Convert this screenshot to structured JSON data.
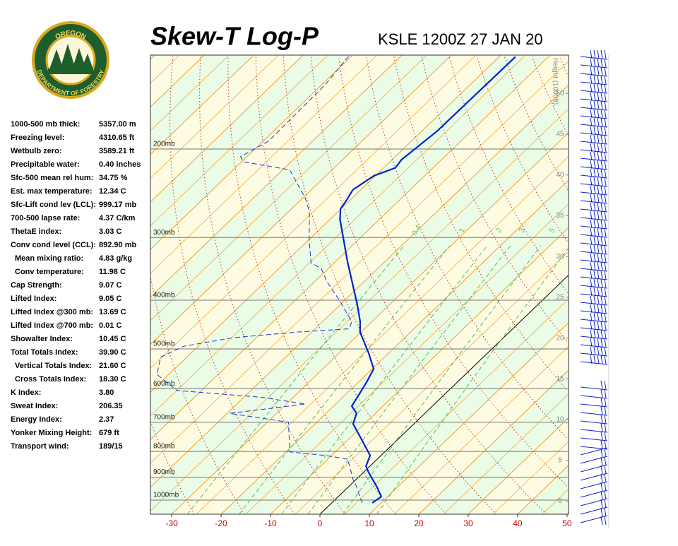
{
  "logo": {
    "top": "OREGON",
    "bottom": "DEPARTMENT OF FORESTRY"
  },
  "indices": [
    {
      "label": "1000-500 mb thick:",
      "value": "5357.00 m"
    },
    {
      "label": "Freezing level:",
      "value": "4310.65 ft"
    },
    {
      "label": "Wetbulb zero:",
      "value": "3589.21 ft"
    },
    {
      "label": "Precipitable water:",
      "value": "0.40 inches"
    },
    {
      "label": "Sfc-500 mean rel hum:",
      "value": "34.75 %"
    },
    {
      "label": "Est. max temperature:",
      "value": "12.34 C"
    },
    {
      "label": "Sfc-Lift cond lev (LCL):",
      "value": "999.17 mb"
    },
    {
      "label": "700-500 lapse rate:",
      "value": "4.37 C/km"
    },
    {
      "label": "ThetaE index:",
      "value": "3.03 C"
    },
    {
      "label": "Conv cond level (CCL):",
      "value": "892.90 mb"
    },
    {
      "label": "Mean mixing ratio:",
      "value": "4.83 g/kg"
    },
    {
      "label": "Conv temperature:",
      "value": "11.98 C"
    },
    {
      "label": "Cap Strength:",
      "value": "9.07 C"
    },
    {
      "label": "Lifted Index:",
      "value": "9.05 C"
    },
    {
      "label": "Lifted Index @300 mb:",
      "value": "13.69 C"
    },
    {
      "label": "Lifted Index @700 mb:",
      "value": "0.01 C"
    },
    {
      "label": "Showalter Index:",
      "value": "10.45 C"
    },
    {
      "label": "Total Totals Index:",
      "value": "39.90 C"
    },
    {
      "label": "Vertical Totals Index:",
      "value": "21.60 C"
    },
    {
      "label": "Cross Totals Index:",
      "value": "18.30 C"
    },
    {
      "label": "K Index:",
      "value": "3.80"
    },
    {
      "label": "Sweat Index:",
      "value": "206.35"
    },
    {
      "label": "Energy Index:",
      "value": "2.37"
    },
    {
      "label": "Yonker Mixing Height:",
      "value": "679 ft"
    },
    {
      "label": "Transport wind:",
      "value": "189/15"
    }
  ],
  "chart_data": {
    "type": "skew-t",
    "title": "Skew-T Log-P",
    "subtitle": "KSLE 1200Z 27 JAN 20",
    "xlim": [
      -34.3,
      50.3
    ],
    "xticks": [
      -30,
      -20,
      -10,
      0,
      10,
      20,
      30,
      40,
      50
    ],
    "ylim": [
      1067,
      130
    ],
    "log_y": true,
    "yticks": [
      {
        "value": 1000,
        "label": "1000mb"
      },
      {
        "value": 900,
        "label": "900mb"
      },
      {
        "value": 800,
        "label": "800mb"
      },
      {
        "value": 700,
        "label": "700mb"
      },
      {
        "value": 600,
        "label": "600mb"
      },
      {
        "value": 500,
        "label": "500mb"
      },
      {
        "value": 400,
        "label": "400mb"
      },
      {
        "value": 300,
        "label": "300mb"
      },
      {
        "value": 200,
        "label": "200mb"
      }
    ],
    "y2label": "Height (1000ft)",
    "y2lim": [
      -1.6,
      54.7
    ],
    "y2ticks": [
      0,
      5,
      10,
      15,
      20,
      25,
      30,
      35,
      40,
      45,
      50
    ],
    "mixing_ratios": [
      0.4,
      1,
      2,
      3,
      5,
      8
    ],
    "series": [
      {
        "color": "#0022cc",
        "pressure": [
          1013,
          984,
          943,
          879,
          856,
          815,
          705,
          672,
          650,
          619,
          581,
          548,
          510,
          463,
          441,
          407,
          335,
          276,
          263,
          254,
          241,
          226,
          218,
          210,
          184,
          131
        ],
        "temperature": [
          8.2,
          8.7,
          5.9,
          0.9,
          -0.8,
          -2.2,
          -12.3,
          -13.8,
          -16.3,
          -17.2,
          -18.4,
          -19.7,
          -24.0,
          -30.2,
          -32.4,
          -36.7,
          -47.6,
          -58.0,
          -60.1,
          -60.6,
          -61.6,
          -60.3,
          -57.6,
          -58.1,
          -56.9,
          -56.7
        ]
      },
      {
        "color": "#2233cc",
        "dashed": true,
        "pressure": [
          1013,
          990,
          943,
          913,
          856,
          829,
          815,
          802,
          700,
          672,
          644,
          624,
          605,
          562,
          519,
          494,
          475,
          463,
          456,
          441,
          400,
          367,
          346,
          337,
          304,
          267,
          250,
          220,
          212,
          207,
          193,
          149,
          130
        ],
        "temperature": [
          6.2,
          4.7,
          1.8,
          -0.4,
          -4.1,
          -6.0,
          -11.3,
          -19.2,
          -25.7,
          -39.5,
          -26.1,
          -36.5,
          -55.0,
          -62.4,
          -65.3,
          -62.9,
          -54.7,
          -43.0,
          -33.1,
          -34.1,
          -41.1,
          -47.6,
          -51.4,
          -54.7,
          -59.8,
          -65.7,
          -69.6,
          -78.6,
          -89.7,
          -91.3,
          -88.9,
          -89.3,
          -90.6
        ]
      }
    ]
  }
}
